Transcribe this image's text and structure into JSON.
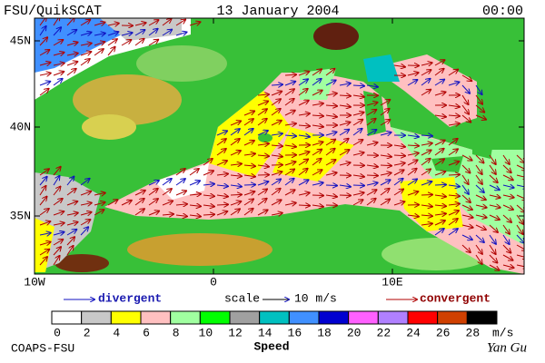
{
  "header": {
    "left": "FSU/QuikSCAT",
    "center": "13 January 2004",
    "right": "00:00"
  },
  "axes": {
    "lat_labels": [
      "45N",
      "40N",
      "35N"
    ],
    "lon_labels": [
      "10W",
      "0",
      "10E"
    ]
  },
  "legend": {
    "divergent": "divergent",
    "scale": "scale",
    "scale_value": "10 m/s",
    "convergent": "convergent"
  },
  "colorbar": {
    "ticks": [
      0,
      2,
      4,
      6,
      8,
      10,
      12,
      14,
      16,
      18,
      20,
      22,
      24,
      26,
      28
    ],
    "unit": "m/s",
    "title": "Speed",
    "colors": [
      "#ffffff",
      "#c8c8c8",
      "#ffff00",
      "#ffc0c0",
      "#a0ffa0",
      "#00ff00",
      "#a0a0a0",
      "#00c0c0",
      "#4090ff",
      "#0000d0",
      "#ff60ff",
      "#b080ff",
      "#ff0000",
      "#d04000",
      "#000000"
    ]
  },
  "footer": {
    "left": "COAPS-FSU",
    "right": "Yan Gu"
  }
}
